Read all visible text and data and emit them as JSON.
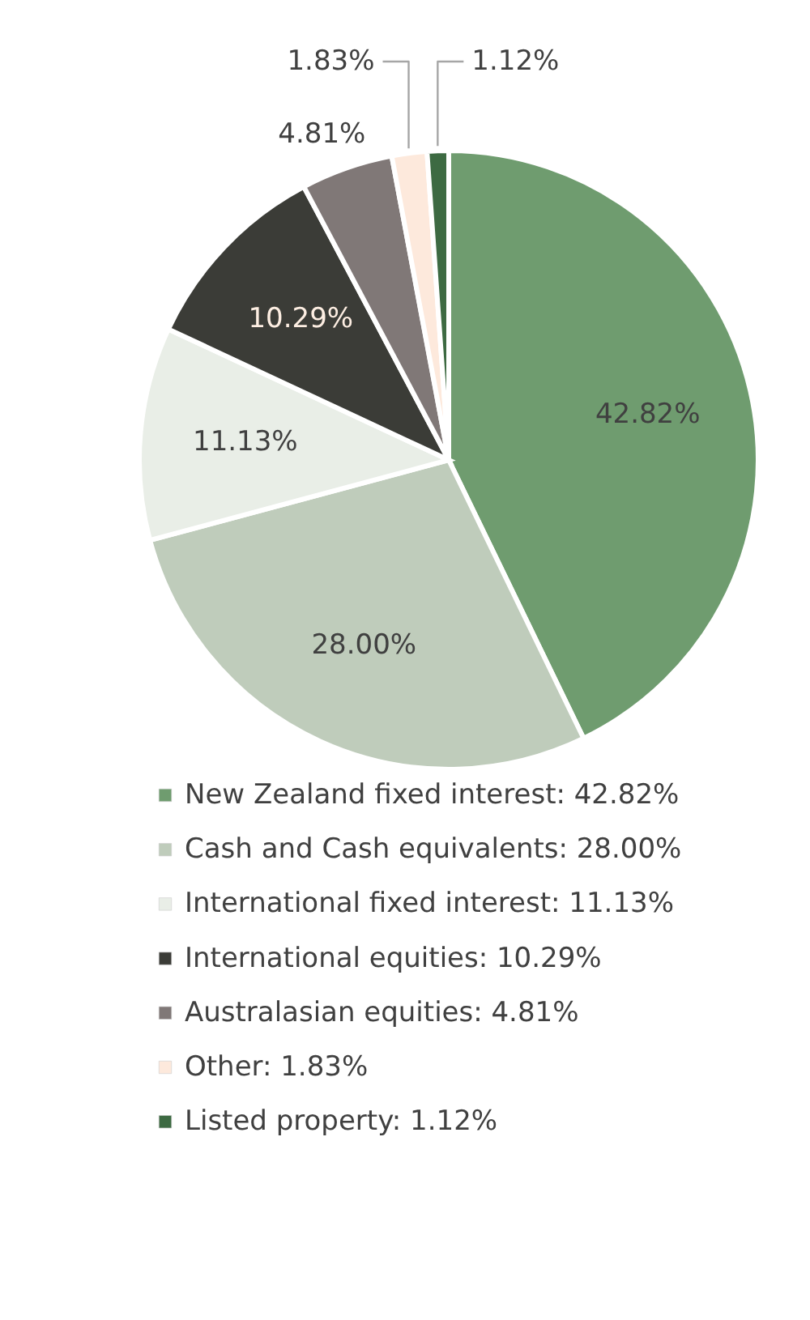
{
  "chart_data": {
    "type": "pie",
    "categories": [
      "New Zealand fixed interest",
      "Cash and Cash equivalents",
      "International fixed interest",
      "International equities",
      "Australasian equities",
      "Other",
      "Listed property"
    ],
    "values": [
      42.82,
      28.0,
      11.13,
      10.29,
      4.81,
      1.83,
      1.12
    ],
    "value_labels": [
      "42.82%",
      "28.00%",
      "11.13%",
      "10.29%",
      "4.81%",
      "1.83%",
      "1.12%"
    ],
    "colors": [
      "#6f9c6f",
      "#bfccbb",
      "#e9eee7",
      "#3b3c37",
      "#807877",
      "#fde9dc",
      "#3d6a42"
    ],
    "legend": "bottom"
  }
}
